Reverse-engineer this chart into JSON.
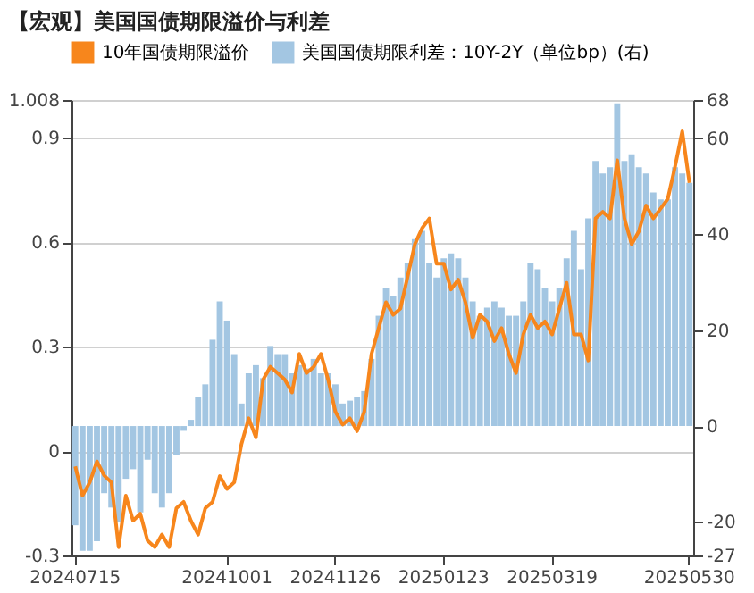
{
  "chart_data": {
    "type": "bar",
    "title": "【宏观】美国国债期限溢价与利差",
    "categories": [
      "20240715",
      null,
      null,
      null,
      null,
      null,
      null,
      null,
      null,
      null,
      null,
      null,
      null,
      null,
      null,
      null,
      null,
      null,
      null,
      null,
      null,
      "20241001",
      null,
      null,
      null,
      null,
      null,
      null,
      null,
      null,
      null,
      null,
      null,
      null,
      null,
      null,
      "20241126",
      null,
      null,
      null,
      null,
      null,
      null,
      null,
      null,
      null,
      null,
      null,
      null,
      null,
      null,
      "20250123",
      null,
      null,
      null,
      null,
      null,
      null,
      null,
      null,
      null,
      null,
      null,
      null,
      null,
      null,
      "20250319",
      null,
      null,
      null,
      null,
      null,
      null,
      null,
      null,
      null,
      null,
      null,
      null,
      null,
      null,
      null,
      null,
      null,
      null,
      "20250530"
    ],
    "series": [
      {
        "name": "10年国债期限溢价",
        "type": "line",
        "axis": "y",
        "color": "#f7861c",
        "values": [
          -0.044,
          -0.128,
          -0.09,
          -0.03,
          -0.07,
          -0.09,
          -0.276,
          -0.128,
          -0.2,
          -0.18,
          -0.257,
          -0.276,
          -0.24,
          -0.276,
          -0.164,
          -0.146,
          -0.2,
          -0.24,
          -0.164,
          -0.146,
          -0.072,
          -0.109,
          -0.09,
          0.02,
          0.094,
          0.039,
          0.205,
          0.242,
          0.224,
          0.205,
          0.168,
          0.279,
          0.224,
          0.242,
          0.279,
          0.205,
          0.113,
          0.076,
          0.094,
          0.057,
          0.113,
          0.279,
          0.353,
          0.427,
          0.391,
          0.409,
          0.501,
          0.594,
          0.64,
          0.668,
          0.538,
          0.538,
          0.464,
          0.492,
          0.427,
          0.325,
          0.391,
          0.372,
          0.316,
          0.353,
          0.279,
          0.224,
          0.335,
          0.391,
          0.353,
          0.372,
          0.335,
          0.409,
          0.483,
          0.335,
          0.335,
          0.26,
          0.668,
          0.687,
          0.668,
          0.835,
          0.668,
          0.594,
          0.631,
          0.705,
          0.668,
          0.696,
          0.724,
          0.816,
          0.918,
          0.77
        ]
      },
      {
        "name": "美国国债期限利差：10Y-2Y（单位bp）(右)",
        "axis": "y2",
        "color": "#a3c6e2",
        "values": [
          -20.7,
          -26,
          -26,
          -24,
          -14,
          -17,
          -20,
          -11,
          -9,
          -18,
          -7,
          -14,
          -17,
          -14,
          -6,
          -1,
          1.3,
          6,
          8.7,
          18,
          26,
          22,
          15,
          4.7,
          11,
          12.7,
          10,
          16.7,
          15,
          15,
          11,
          12.7,
          12,
          14,
          11,
          11,
          8.7,
          4.7,
          5.3,
          6,
          7.3,
          14,
          23,
          28.7,
          27,
          31,
          34,
          39,
          40.7,
          34,
          31,
          35,
          36,
          35,
          31,
          26,
          23,
          24.7,
          26,
          24.7,
          23,
          23,
          26,
          34,
          32.7,
          28.7,
          26,
          28.7,
          35,
          40.7,
          32.7,
          43.3,
          55.3,
          52.7,
          54,
          67.3,
          55.3,
          56.7,
          54,
          52.7,
          48.7,
          47.3,
          47.3,
          54,
          52.7,
          50.7
        ]
      }
    ],
    "ylim": [
      -0.3,
      1.008
    ],
    "yticks": [
      -0.3,
      0,
      0.3,
      0.6,
      0.9,
      1.008
    ],
    "y2lim": [
      -27,
      68
    ],
    "y2ticks": [
      -27,
      -20,
      0,
      20,
      40,
      60,
      68
    ],
    "grid": true,
    "legend": "top"
  }
}
